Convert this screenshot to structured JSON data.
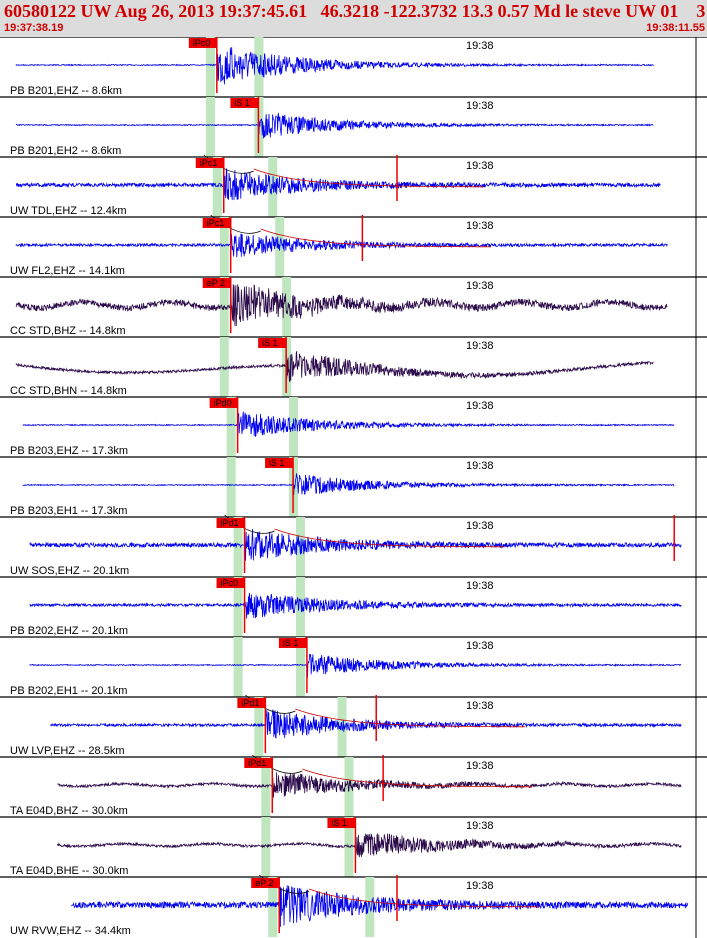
{
  "header": {
    "title": "60580122 UW Aug 26, 2013 19:37:45.61   46.3218 -122.3732 13.3 0.57 Md le steve UW 01    3",
    "time_start": "19:37:38.19",
    "time_end": "19:38:11.55"
  },
  "colors": {
    "header_bg": "#dcdcdc",
    "header_text": "#d00000",
    "trace_blue": "#0000ee",
    "trace_dark": "#2b0a4a",
    "pick_red": "#ee0000",
    "band_green": "#bfe6bf",
    "coda_red": "#cc0000"
  },
  "tick_label": "19:38",
  "traces": [
    {
      "label": "PB B201,EHZ -- 8.6km",
      "pick": "iPc0",
      "color": "blue",
      "p": 0.3,
      "s": 0.37,
      "start": 0.02,
      "end": 0.94,
      "arrive": 0.31,
      "amp": 0.85,
      "noise": 0.02,
      "coda": false,
      "spike": null,
      "drift": false
    },
    {
      "label": "PB B201,EH2 -- 8.6km",
      "pick": "iS 1",
      "color": "blue",
      "p": 0.3,
      "s": 0.37,
      "start": 0.02,
      "end": 0.94,
      "arrive": 0.37,
      "amp": 0.55,
      "noise": 0.02,
      "coda": false,
      "spike": null,
      "drift": false
    },
    {
      "label": "UW TDL,EHZ -- 12.4km",
      "pick": "iPc1",
      "color": "blue",
      "p": 0.31,
      "s": 0.39,
      "start": 0.02,
      "end": 0.95,
      "arrive": 0.32,
      "amp": 0.6,
      "noise": 0.07,
      "coda": true,
      "spike": 0.57,
      "drift": false
    },
    {
      "label": "UW FL2,EHZ -- 14.1km",
      "pick": "iPc1",
      "color": "blue",
      "p": 0.32,
      "s": 0.4,
      "start": 0.02,
      "end": 0.96,
      "arrive": 0.33,
      "amp": 0.5,
      "noise": 0.05,
      "coda": true,
      "spike": 0.52,
      "drift": false
    },
    {
      "label": "CC STD,BHZ -- 14.8km",
      "pick": "eP 2",
      "color": "dark",
      "p": 0.32,
      "s": 0.41,
      "start": 0.02,
      "end": 0.96,
      "arrive": 0.33,
      "amp": 0.75,
      "noise": 0.12,
      "coda": false,
      "spike": null,
      "drift": false
    },
    {
      "label": "CC STD,BHN -- 14.8km",
      "pick": "iS 1",
      "color": "dark",
      "p": 0.32,
      "s": 0.41,
      "start": 0.02,
      "end": 0.94,
      "arrive": 0.41,
      "amp": 0.6,
      "noise": 0.05,
      "coda": false,
      "spike": null,
      "drift": true
    },
    {
      "label": "PB B203,EHZ -- 17.3km",
      "pick": "iPd0",
      "color": "blue",
      "p": 0.33,
      "s": 0.42,
      "start": 0.03,
      "end": 0.97,
      "arrive": 0.34,
      "amp": 0.55,
      "noise": 0.02,
      "coda": false,
      "spike": null,
      "drift": false
    },
    {
      "label": "PB B203,EH1 -- 17.3km",
      "pick": "iS 1",
      "color": "blue",
      "p": 0.33,
      "s": 0.42,
      "start": 0.03,
      "end": 0.97,
      "arrive": 0.42,
      "amp": 0.45,
      "noise": 0.02,
      "coda": false,
      "spike": null,
      "drift": false
    },
    {
      "label": "UW SOS,EHZ -- 20.1km",
      "pick": "iPd1",
      "color": "blue",
      "p": 0.34,
      "s": 0.43,
      "start": 0.04,
      "end": 0.98,
      "arrive": 0.35,
      "amp": 0.6,
      "noise": 0.08,
      "coda": true,
      "spike": 0.97,
      "drift": false
    },
    {
      "label": "PB B202,EHZ -- 20.1km",
      "pick": "iPc0",
      "color": "blue",
      "p": 0.34,
      "s": 0.43,
      "start": 0.04,
      "end": 0.98,
      "arrive": 0.35,
      "amp": 0.55,
      "noise": 0.05,
      "coda": false,
      "spike": null,
      "drift": false
    },
    {
      "label": "PB B202,EH1 -- 20.1km",
      "pick": "iS 1",
      "color": "blue",
      "p": 0.34,
      "s": 0.43,
      "start": 0.04,
      "end": 0.98,
      "arrive": 0.44,
      "amp": 0.45,
      "noise": 0.02,
      "coda": false,
      "spike": null,
      "drift": false
    },
    {
      "label": "UW LVP,EHZ -- 28.5km",
      "pick": "iPd1",
      "color": "blue",
      "p": 0.37,
      "s": 0.49,
      "start": 0.07,
      "end": 0.98,
      "arrive": 0.38,
      "amp": 0.6,
      "noise": 0.05,
      "coda": true,
      "spike": 0.54,
      "drift": false
    },
    {
      "label": "TA E04D,BHZ -- 30.0km",
      "pick": "iPd1",
      "color": "dark",
      "p": 0.38,
      "s": 0.5,
      "start": 0.08,
      "end": 0.98,
      "arrive": 0.39,
      "amp": 0.5,
      "noise": 0.05,
      "coda": true,
      "spike": 0.55,
      "drift": false
    },
    {
      "label": "TA E04D,BHE -- 30.0km",
      "pick": "iS 1",
      "color": "dark",
      "p": 0.38,
      "s": 0.5,
      "start": 0.08,
      "end": 0.98,
      "arrive": 0.51,
      "amp": 0.55,
      "noise": 0.05,
      "coda": false,
      "spike": null,
      "drift": false
    },
    {
      "label": "UW RVW,EHZ -- 34.4km",
      "pick": "eP 2",
      "color": "blue",
      "p": 0.39,
      "s": 0.53,
      "start": 0.1,
      "end": 0.99,
      "arrive": 0.4,
      "amp": 0.75,
      "noise": 0.12,
      "coda": true,
      "spike": 0.57,
      "drift": false
    }
  ]
}
